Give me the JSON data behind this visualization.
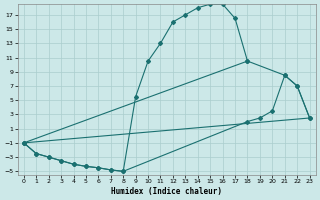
{
  "xlabel": "Humidex (Indice chaleur)",
  "xlim": [
    -0.5,
    23.5
  ],
  "ylim": [
    -5.5,
    18.5
  ],
  "xticks": [
    0,
    1,
    2,
    3,
    4,
    5,
    6,
    7,
    8,
    9,
    10,
    11,
    12,
    13,
    14,
    15,
    16,
    17,
    18,
    19,
    20,
    21,
    22,
    23
  ],
  "yticks": [
    -5,
    -3,
    -1,
    1,
    3,
    5,
    7,
    9,
    11,
    13,
    15,
    17
  ],
  "bg_color": "#cce8e8",
  "line_color": "#1a7070",
  "grid_color": "#aacece",
  "curve1_x": [
    0,
    1,
    2,
    3,
    4,
    5,
    6,
    7,
    8,
    9,
    10,
    11,
    12,
    13,
    14,
    15,
    16,
    17,
    18
  ],
  "curve1_y": [
    -1.0,
    -2.5,
    -3.0,
    -3.5,
    -4.0,
    -4.3,
    -4.5,
    -4.8,
    -5.0,
    5.5,
    10.5,
    13.0,
    16.0,
    17.0,
    18.0,
    18.5,
    18.5,
    16.5,
    10.5
  ],
  "curve2_x": [
    0,
    18,
    21,
    22,
    23
  ],
  "curve2_y": [
    -1.0,
    10.5,
    8.5,
    7.0,
    2.5
  ],
  "curve3_x": [
    0,
    1,
    2,
    3,
    4,
    5,
    6,
    7,
    8,
    18,
    19,
    20,
    21,
    22,
    23
  ],
  "curve3_y": [
    -1.0,
    -2.5,
    -3.0,
    -3.5,
    -4.0,
    -4.3,
    -4.5,
    -4.8,
    -5.0,
    2.0,
    2.5,
    3.5,
    8.5,
    7.0,
    2.5
  ],
  "curve4_x": [
    0,
    23
  ],
  "curve4_y": [
    -1.0,
    2.5
  ]
}
